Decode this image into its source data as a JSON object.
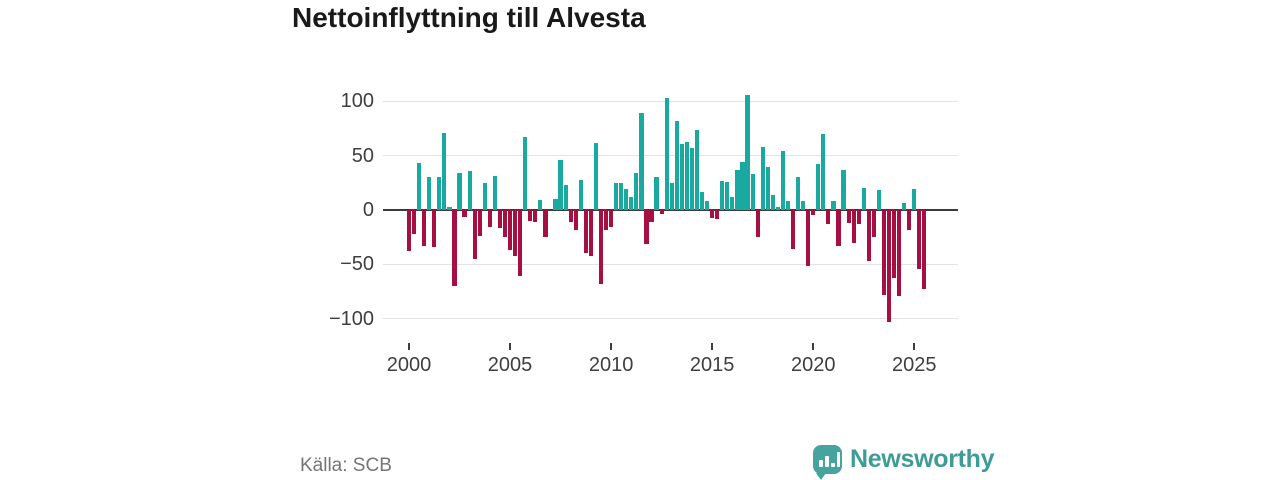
{
  "title": "Nettoinflyttning till Alvesta",
  "source": "Källa: SCB",
  "logo": {
    "text": "Newsworthy"
  },
  "colors": {
    "positive": "#1aa9a1",
    "negative": "#a60f41",
    "logo": "#46a39d"
  },
  "chart_data": {
    "type": "bar",
    "title": "Nettoinflyttning till Alvesta",
    "xlabel": "",
    "ylabel": "",
    "frequency": "quarterly",
    "ylim": [
      -114,
      112
    ],
    "grid": "horizontal",
    "y_ticks": {
      "values": [
        100,
        50,
        0,
        -50,
        -100
      ],
      "labels": [
        "100",
        "50",
        "0",
        "−50",
        "−100"
      ]
    },
    "x_ticks": [
      {
        "label": "2000",
        "index": 0
      },
      {
        "label": "2005",
        "index": 20
      },
      {
        "label": "2010",
        "index": 40
      },
      {
        "label": "2015",
        "index": 60
      },
      {
        "label": "2020",
        "index": 80
      },
      {
        "label": "2025",
        "index": 100
      }
    ],
    "categories": [
      "2000 Q1",
      "2000 Q2",
      "2000 Q3",
      "2000 Q4",
      "2001 Q1",
      "2001 Q2",
      "2001 Q3",
      "2001 Q4",
      "2002 Q1",
      "2002 Q2",
      "2002 Q3",
      "2002 Q4",
      "2003 Q1",
      "2003 Q2",
      "2003 Q3",
      "2003 Q4",
      "2004 Q1",
      "2004 Q2",
      "2004 Q3",
      "2004 Q4",
      "2005 Q1",
      "2005 Q2",
      "2005 Q3",
      "2005 Q4",
      "2006 Q1",
      "2006 Q2",
      "2006 Q3",
      "2006 Q4",
      "2007 Q1",
      "2007 Q2",
      "2007 Q3",
      "2007 Q4",
      "2008 Q1",
      "2008 Q2",
      "2008 Q3",
      "2008 Q4",
      "2009 Q1",
      "2009 Q2",
      "2009 Q3",
      "2009 Q4",
      "2010 Q1",
      "2010 Q2",
      "2010 Q3",
      "2010 Q4",
      "2011 Q1",
      "2011 Q2",
      "2011 Q3",
      "2011 Q4",
      "2012 Q1",
      "2012 Q2",
      "2012 Q3",
      "2012 Q4",
      "2013 Q1",
      "2013 Q2",
      "2013 Q3",
      "2013 Q4",
      "2014 Q1",
      "2014 Q2",
      "2014 Q3",
      "2014 Q4",
      "2015 Q1",
      "2015 Q2",
      "2015 Q3",
      "2015 Q4",
      "2016 Q1",
      "2016 Q2",
      "2016 Q3",
      "2016 Q4",
      "2017 Q1",
      "2017 Q2",
      "2017 Q3",
      "2017 Q4",
      "2018 Q1",
      "2018 Q2",
      "2018 Q3",
      "2018 Q4",
      "2019 Q1",
      "2019 Q2",
      "2019 Q3",
      "2019 Q4",
      "2020 Q1",
      "2020 Q2",
      "2020 Q3",
      "2020 Q4",
      "2021 Q1",
      "2021 Q2",
      "2021 Q3",
      "2021 Q4",
      "2022 Q1",
      "2022 Q2",
      "2022 Q3",
      "2022 Q4",
      "2023 Q1",
      "2023 Q2",
      "2023 Q3",
      "2023 Q4",
      "2024 Q1",
      "2024 Q2",
      "2024 Q3",
      "2024 Q4",
      "2025 Q1",
      "2025 Q2",
      "2025 Q3"
    ],
    "series": [
      {
        "name": "Nettoinflyttning",
        "values": [
          -38,
          -22,
          43,
          -33,
          30,
          -34,
          30,
          71,
          3,
          -70,
          34,
          -6,
          36,
          -45,
          -24,
          25,
          -16,
          31,
          -17,
          -25,
          -37,
          -42,
          -61,
          67,
          -10,
          -11,
          9,
          -25,
          0,
          10,
          46,
          23,
          -11,
          -18,
          28,
          -40,
          -42,
          62,
          -68,
          -18,
          -16,
          25,
          25,
          19,
          12,
          34,
          89,
          -31,
          -11,
          30,
          -4,
          103,
          25,
          82,
          61,
          63,
          57,
          74,
          17,
          8,
          -7,
          -8,
          27,
          26,
          12,
          37,
          44,
          106,
          33,
          -25,
          58,
          40,
          14,
          3,
          54,
          8,
          -36,
          30,
          8,
          -52,
          -5,
          42,
          70,
          -13,
          8,
          -33,
          37,
          -12,
          -30,
          -13,
          20,
          -47,
          -25,
          18,
          -78,
          -103,
          -63,
          -79,
          6,
          -18,
          19,
          -54,
          -73
        ]
      }
    ]
  }
}
